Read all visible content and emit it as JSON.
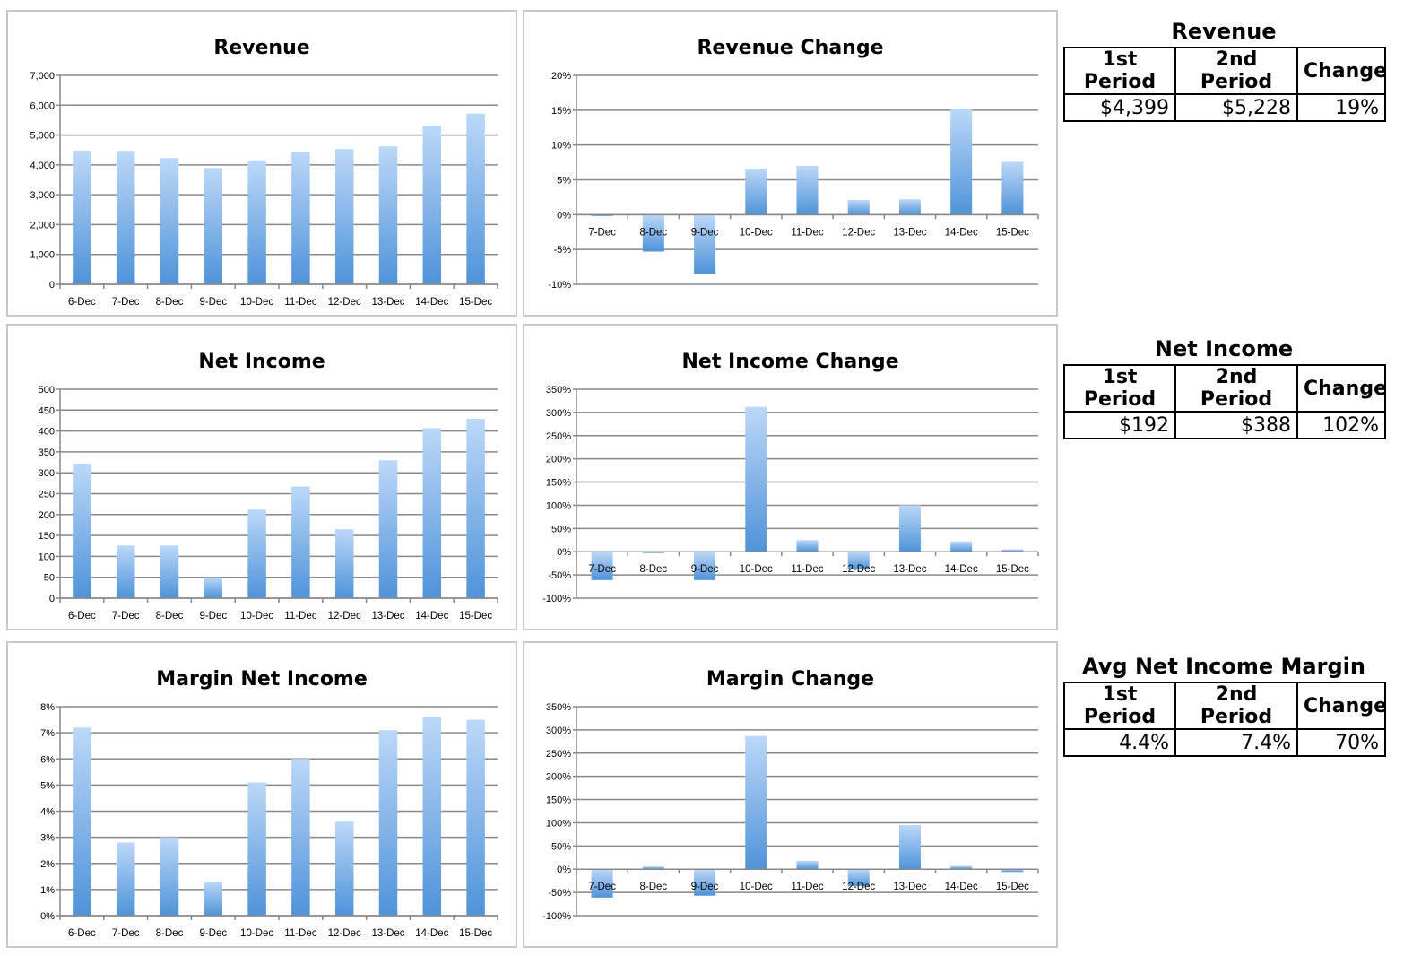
{
  "colors": {
    "bar_top": "#bcd8f8",
    "bar_bottom": "#4f93d9",
    "grid": "#888888",
    "axis": "#888888",
    "panel_border": "#c9c9c9"
  },
  "chart_data": [
    {
      "id": "revenue",
      "type": "bar",
      "title": "Revenue",
      "categories": [
        "6-Dec",
        "7-Dec",
        "8-Dec",
        "9-Dec",
        "10-Dec",
        "11-Dec",
        "12-Dec",
        "13-Dec",
        "14-Dec",
        "15-Dec"
      ],
      "values": [
        4480,
        4470,
        4230,
        3890,
        4150,
        4440,
        4530,
        4620,
        5320,
        5720
      ],
      "ylim": [
        0,
        7000
      ],
      "yticks": [
        0,
        1000,
        2000,
        3000,
        4000,
        5000,
        6000,
        7000
      ],
      "yticklabels": [
        "0",
        "1,000",
        "2,000",
        "3,000",
        "4,000",
        "5,000",
        "6,000",
        "7,000"
      ],
      "grid": true
    },
    {
      "id": "revenue-change",
      "type": "bar",
      "title": "Revenue Change",
      "categories": [
        "7-Dec",
        "8-Dec",
        "9-Dec",
        "10-Dec",
        "11-Dec",
        "12-Dec",
        "13-Dec",
        "14-Dec",
        "15-Dec"
      ],
      "values": [
        -0.2,
        -5.3,
        -8.5,
        6.6,
        7.0,
        2.1,
        2.2,
        15.2,
        7.6
      ],
      "ylim": [
        -10,
        20
      ],
      "yticks": [
        -10,
        -5,
        0,
        5,
        10,
        15,
        20
      ],
      "yticklabels": [
        "-10%",
        "-5%",
        "0%",
        "5%",
        "10%",
        "15%",
        "20%"
      ],
      "grid": true
    },
    {
      "id": "net-income",
      "type": "bar",
      "title": "Net Income",
      "categories": [
        "6-Dec",
        "7-Dec",
        "8-Dec",
        "9-Dec",
        "10-Dec",
        "11-Dec",
        "12-Dec",
        "13-Dec",
        "14-Dec",
        "15-Dec"
      ],
      "values": [
        322,
        126,
        126,
        50,
        212,
        267,
        165,
        330,
        407,
        429
      ],
      "ylim": [
        0,
        500
      ],
      "yticks": [
        0,
        50,
        100,
        150,
        200,
        250,
        300,
        350,
        400,
        450,
        500
      ],
      "yticklabels": [
        "0",
        "50",
        "100",
        "150",
        "200",
        "250",
        "300",
        "350",
        "400",
        "450",
        "500"
      ],
      "grid": true
    },
    {
      "id": "net-income-change",
      "type": "bar",
      "title": "Net Income Change",
      "categories": [
        "7-Dec",
        "8-Dec",
        "9-Dec",
        "10-Dec",
        "11-Dec",
        "12-Dec",
        "13-Dec",
        "14-Dec",
        "15-Dec"
      ],
      "values": [
        -61,
        -1,
        -61,
        312,
        25,
        -38,
        100,
        22,
        5
      ],
      "ylim": [
        -100,
        350
      ],
      "yticks": [
        -100,
        -50,
        0,
        50,
        100,
        150,
        200,
        250,
        300,
        350
      ],
      "yticklabels": [
        "-100%",
        "-50%",
        "0%",
        "50%",
        "100%",
        "150%",
        "200%",
        "250%",
        "300%",
        "350%"
      ],
      "grid": true
    },
    {
      "id": "margin-net-income",
      "type": "bar",
      "title": "Margin Net Income",
      "categories": [
        "6-Dec",
        "7-Dec",
        "8-Dec",
        "9-Dec",
        "10-Dec",
        "11-Dec",
        "12-Dec",
        "13-Dec",
        "14-Dec",
        "15-Dec"
      ],
      "values": [
        7.2,
        2.8,
        3.0,
        1.3,
        5.1,
        6.0,
        3.6,
        7.1,
        7.6,
        7.5
      ],
      "ylim": [
        0,
        8
      ],
      "yticks": [
        0,
        1,
        2,
        3,
        4,
        5,
        6,
        7,
        8
      ],
      "yticklabels": [
        "0%",
        "1%",
        "2%",
        "3%",
        "4%",
        "5%",
        "6%",
        "7%",
        "8%"
      ],
      "grid": true
    },
    {
      "id": "margin-change",
      "type": "bar",
      "title": "Margin Change",
      "categories": [
        "7-Dec",
        "8-Dec",
        "9-Dec",
        "10-Dec",
        "11-Dec",
        "12-Dec",
        "13-Dec",
        "14-Dec",
        "15-Dec"
      ],
      "values": [
        -61,
        6,
        -57,
        287,
        18,
        -36,
        95,
        7,
        -6
      ],
      "ylim": [
        -100,
        350
      ],
      "yticks": [
        -100,
        -50,
        0,
        50,
        100,
        150,
        200,
        250,
        300,
        350
      ],
      "yticklabels": [
        "-100%",
        "-50%",
        "0%",
        "50%",
        "100%",
        "150%",
        "200%",
        "250%",
        "300%",
        "350%"
      ],
      "grid": true
    }
  ],
  "summaries": {
    "revenue": {
      "title": "Revenue",
      "headers": [
        "1st Period",
        "2nd Period",
        "Change"
      ],
      "values": [
        "$4,399",
        "$5,228",
        "19%"
      ]
    },
    "net_income": {
      "title": "Net Income",
      "headers": [
        "1st Period",
        "2nd Period",
        "Change"
      ],
      "values": [
        "$192",
        "$388",
        "102%"
      ]
    },
    "margin": {
      "title": "Avg Net Income Margin",
      "headers": [
        "1st Period",
        "2nd Period",
        "Change"
      ],
      "values": [
        "4.4%",
        "7.4%",
        "70%"
      ]
    }
  }
}
